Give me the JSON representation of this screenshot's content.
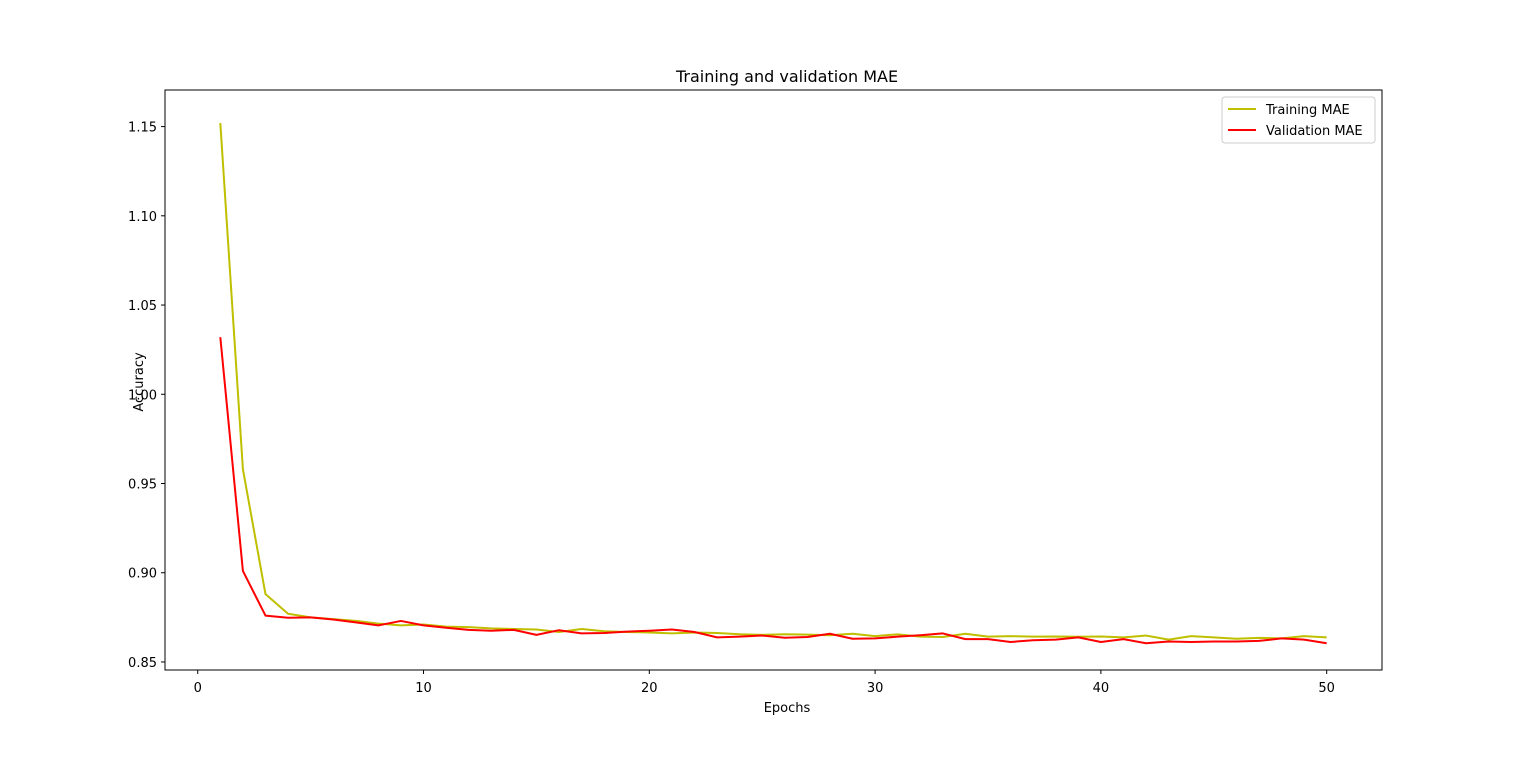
{
  "chart_data": {
    "type": "line",
    "title": "Training and validation MAE",
    "xlabel": "Epochs",
    "ylabel": "Accuracy",
    "xlim": [
      -1.45,
      52.45
    ],
    "ylim": [
      0.8455,
      1.1705
    ],
    "xticks": [
      0,
      10,
      20,
      30,
      40,
      50
    ],
    "xtick_labels": [
      "0",
      "10",
      "20",
      "30",
      "40",
      "50"
    ],
    "yticks": [
      0.85,
      0.9,
      0.95,
      1.0,
      1.05,
      1.1,
      1.15
    ],
    "ytick_labels": [
      "0.85",
      "0.90",
      "0.95",
      "1.00",
      "1.05",
      "1.10",
      "1.15"
    ],
    "grid": false,
    "legend_position": "top-right",
    "x": [
      1,
      2,
      3,
      4,
      5,
      6,
      7,
      8,
      9,
      10,
      11,
      12,
      13,
      14,
      15,
      16,
      17,
      18,
      19,
      20,
      21,
      22,
      23,
      24,
      25,
      26,
      27,
      28,
      29,
      30,
      31,
      32,
      33,
      34,
      35,
      36,
      37,
      38,
      39,
      40,
      41,
      42,
      43,
      44,
      45,
      46,
      47,
      48,
      49,
      50
    ],
    "series": [
      {
        "name": "Training MAE",
        "color": "#bfbf00",
        "values": [
          1.152,
          0.958,
          0.888,
          0.877,
          0.875,
          0.874,
          0.873,
          0.8715,
          0.8705,
          0.871,
          0.8698,
          0.8695,
          0.8688,
          0.8685,
          0.8682,
          0.8668,
          0.8685,
          0.8672,
          0.8668,
          0.8665,
          0.866,
          0.8665,
          0.8662,
          0.8655,
          0.8652,
          0.8655,
          0.8653,
          0.865,
          0.8658,
          0.8645,
          0.8655,
          0.8642,
          0.864,
          0.8658,
          0.8642,
          0.8645,
          0.8642,
          0.8643,
          0.8641,
          0.8643,
          0.8638,
          0.8648,
          0.8625,
          0.8645,
          0.8638,
          0.863,
          0.8635,
          0.8632,
          0.8645,
          0.8638
        ]
      },
      {
        "name": "Validation MAE",
        "color": "#ff0000",
        "values": [
          1.032,
          0.901,
          0.876,
          0.8748,
          0.875,
          0.8738,
          0.8722,
          0.8705,
          0.873,
          0.8705,
          0.8692,
          0.868,
          0.8675,
          0.868,
          0.8652,
          0.8678,
          0.866,
          0.8662,
          0.867,
          0.8675,
          0.8682,
          0.8668,
          0.8638,
          0.8642,
          0.8648,
          0.8636,
          0.864,
          0.8658,
          0.863,
          0.8632,
          0.8642,
          0.865,
          0.866,
          0.8628,
          0.8628,
          0.8612,
          0.8622,
          0.8625,
          0.8638,
          0.8612,
          0.8628,
          0.8605,
          0.8615,
          0.8612,
          0.8615,
          0.8615,
          0.8618,
          0.8632,
          0.8625,
          0.8605
        ]
      }
    ]
  }
}
